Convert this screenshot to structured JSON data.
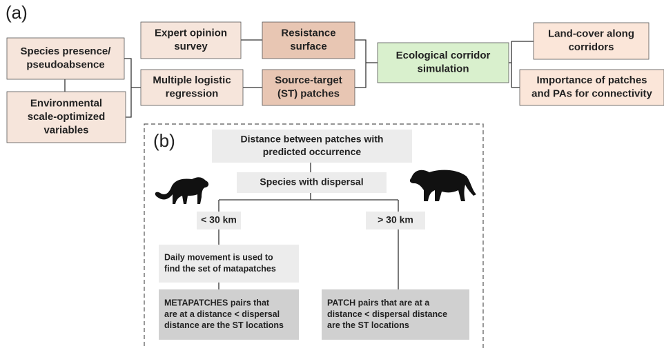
{
  "panel_labels": [
    "(a)",
    "(b)"
  ],
  "nodes": [
    {
      "lines": [
        "Species presence/",
        "pseudoabsence"
      ]
    },
    {
      "lines": [
        "Environmental",
        "scale-optimized",
        "variables"
      ]
    },
    {
      "lines": [
        "Expert opinion",
        "survey"
      ]
    },
    {
      "lines": [
        "Multiple logistic",
        "regression"
      ]
    },
    {
      "lines": [
        "Resistance",
        "surface"
      ]
    },
    {
      "lines": [
        "Source-target",
        "(ST) patches"
      ]
    },
    {
      "lines": [
        "Ecological corridor",
        "simulation"
      ]
    },
    {
      "lines": [
        "Land-cover along",
        "corridors"
      ]
    },
    {
      "lines": [
        "Importance of patches",
        "and  PAs for connectivity"
      ]
    },
    {
      "lines": [
        "Distance between patches with",
        "predicted occurrence"
      ]
    },
    {
      "lines": [
        "Species with dispersal"
      ]
    },
    {
      "lines": [
        "< 30 km"
      ]
    },
    {
      "lines": [
        "> 30 km"
      ]
    },
    {
      "lines": [
        "Daily movement is used to",
        "find the set of matapatches"
      ]
    },
    {
      "lines": [
        "METAPATCHES pairs that",
        "are at a distance < dispersal",
        "distance are the ST locations"
      ]
    },
    {
      "lines": [
        "PATCH pairs that are at a",
        "distance < dispersal distance",
        "are the ST locations"
      ]
    }
  ]
}
